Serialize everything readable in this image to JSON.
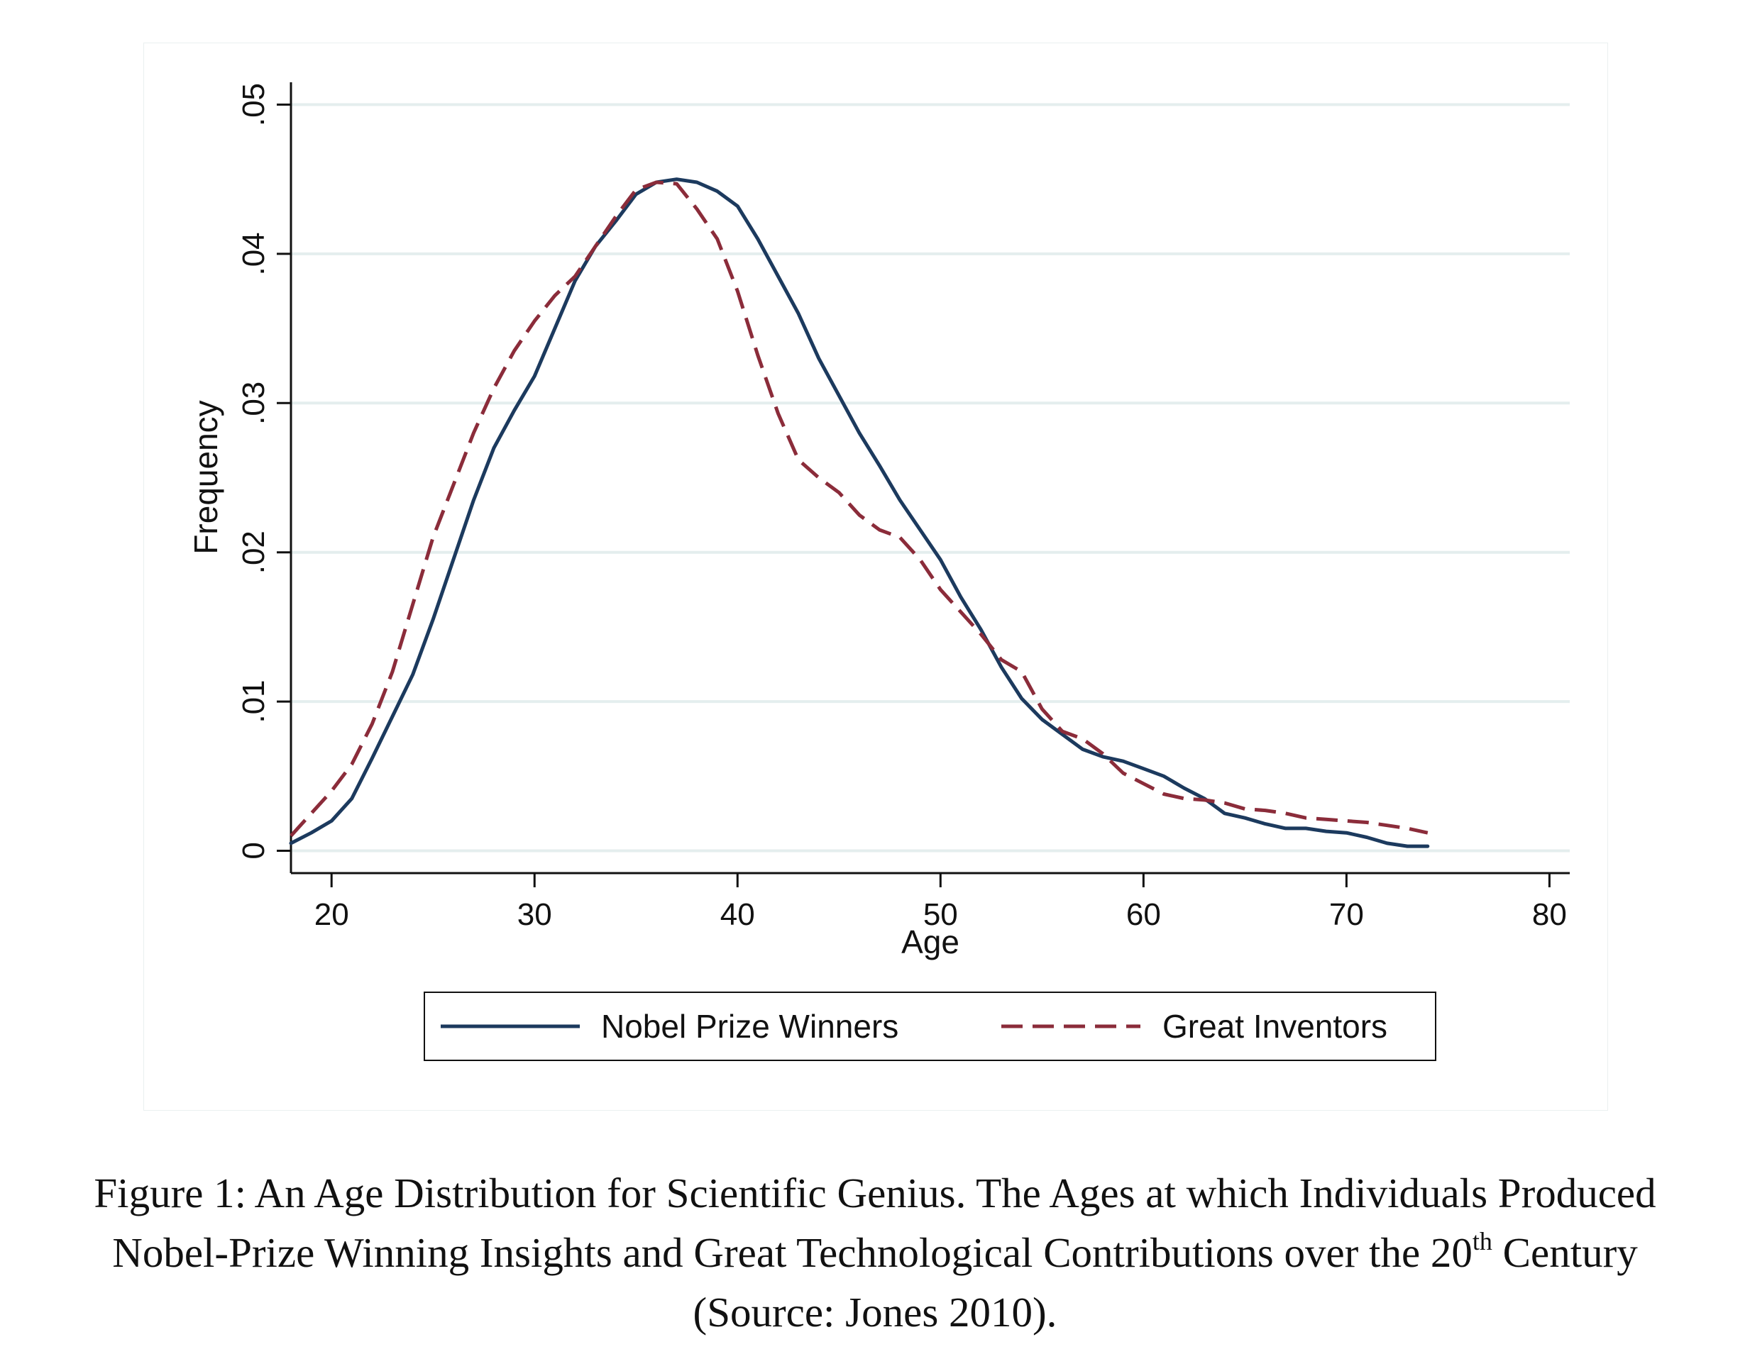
{
  "chart_data": {
    "type": "line",
    "xlabel": "Age",
    "ylabel": "Frequency",
    "xlim": [
      18,
      81
    ],
    "ylim": [
      -0.0015,
      0.0515
    ],
    "x_ticks": [
      20,
      30,
      40,
      50,
      60,
      70,
      80
    ],
    "x_tick_labels": [
      "20",
      "30",
      "40",
      "50",
      "60",
      "70",
      "80"
    ],
    "y_ticks": [
      0,
      0.01,
      0.02,
      0.03,
      0.04,
      0.05
    ],
    "y_tick_labels": [
      "0",
      ".01",
      ".02",
      ".03",
      ".04",
      ".05"
    ],
    "grid": "horizontal",
    "legend_position": "bottom",
    "series": [
      {
        "name": "Nobel Prize Winners",
        "color": "#1c3a5e",
        "style": "solid",
        "x": [
          18,
          19,
          20,
          21,
          22,
          23,
          24,
          25,
          26,
          27,
          28,
          29,
          30,
          31,
          32,
          33,
          34,
          35,
          36,
          37,
          38,
          39,
          40,
          41,
          42,
          43,
          44,
          45,
          46,
          47,
          48,
          49,
          50,
          51,
          52,
          53,
          54,
          55,
          56,
          57,
          58,
          59,
          60,
          61,
          62,
          63,
          64,
          65,
          66,
          67,
          68,
          69,
          70,
          71,
          72,
          73,
          74
        ],
        "y": [
          0.0005,
          0.0012,
          0.002,
          0.0035,
          0.0062,
          0.009,
          0.0118,
          0.0155,
          0.0195,
          0.0235,
          0.027,
          0.0295,
          0.0318,
          0.035,
          0.0382,
          0.0405,
          0.0422,
          0.044,
          0.0448,
          0.045,
          0.0448,
          0.0442,
          0.0432,
          0.041,
          0.0385,
          0.036,
          0.033,
          0.0305,
          0.028,
          0.0258,
          0.0235,
          0.0215,
          0.0195,
          0.017,
          0.0148,
          0.0123,
          0.0102,
          0.0088,
          0.0078,
          0.0068,
          0.0063,
          0.006,
          0.0055,
          0.005,
          0.0042,
          0.0035,
          0.0025,
          0.0022,
          0.0018,
          0.0015,
          0.0015,
          0.0013,
          0.0012,
          0.0009,
          0.0005,
          0.0003,
          0.0003
        ]
      },
      {
        "name": "Great Inventors",
        "color": "#8b2c3a",
        "style": "dashed",
        "x": [
          18,
          19,
          20,
          21,
          22,
          23,
          24,
          25,
          26,
          27,
          28,
          29,
          30,
          31,
          32,
          33,
          34,
          35,
          36,
          37,
          38,
          39,
          40,
          41,
          42,
          43,
          44,
          45,
          46,
          47,
          48,
          49,
          50,
          51,
          52,
          53,
          54,
          55,
          56,
          57,
          58,
          59,
          60,
          61,
          62,
          63,
          64,
          65,
          66,
          67,
          68,
          69,
          70,
          71,
          72,
          73,
          74
        ],
        "y": [
          0.001,
          0.0025,
          0.004,
          0.0058,
          0.0085,
          0.012,
          0.0165,
          0.021,
          0.0245,
          0.028,
          0.031,
          0.0335,
          0.0355,
          0.0372,
          0.0385,
          0.0405,
          0.0425,
          0.0443,
          0.0448,
          0.0447,
          0.043,
          0.041,
          0.0375,
          0.0332,
          0.0293,
          0.0262,
          0.025,
          0.024,
          0.0225,
          0.0215,
          0.021,
          0.0195,
          0.0175,
          0.016,
          0.0145,
          0.0128,
          0.012,
          0.0095,
          0.008,
          0.0075,
          0.0065,
          0.0052,
          0.0045,
          0.0038,
          0.0035,
          0.0034,
          0.0032,
          0.0028,
          0.0027,
          0.0025,
          0.0022,
          0.0021,
          0.002,
          0.0019,
          0.0017,
          0.0015,
          0.0012
        ]
      }
    ]
  },
  "caption": {
    "line1": "Figure 1:  An Age Distribution for Scientific Genius.  The Ages at which Individuals Produced",
    "line2_before": "Nobel-Prize Winning Insights and Great Technological Contributions over the 20",
    "line2_sup": "th",
    "line2_after": " Century",
    "line3": "(Source: Jones 2010)."
  }
}
